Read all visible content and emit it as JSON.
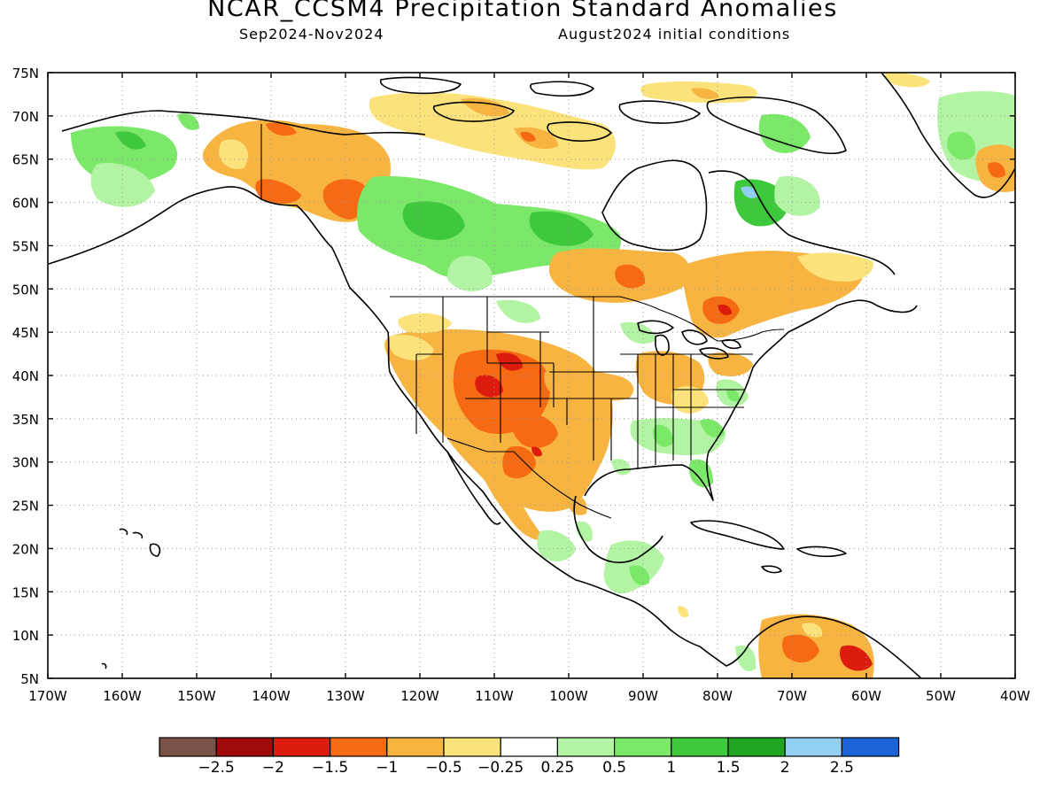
{
  "title": "NCAR_CCSM4 Precipitation Standard Anomalies",
  "subtitle_left": "Sep2024-Nov2024",
  "subtitle_right": "August2024 initial conditions",
  "map": {
    "projection": "cylindrical equidistant",
    "lon_range": [
      -170,
      -40
    ],
    "lat_range": [
      5,
      75
    ],
    "grid": "dotted",
    "lat_labels": [
      "75N",
      "70N",
      "65N",
      "60N",
      "55N",
      "50N",
      "45N",
      "40N",
      "35N",
      "30N",
      "25N",
      "20N",
      "15N",
      "10N",
      "5N"
    ],
    "lon_labels": [
      "170W",
      "160W",
      "150W",
      "140W",
      "130W",
      "120W",
      "110W",
      "100W",
      "90W",
      "80W",
      "70W",
      "60W",
      "50W",
      "40W"
    ]
  },
  "colorbar": {
    "colors": [
      "#7b5247",
      "#a10a0a",
      "#dc1d0e",
      "#f56a12",
      "#f8b441",
      "#fbe27a",
      "#ffffff",
      "#b2f4a3",
      "#7be86a",
      "#3ec83c",
      "#1fa522",
      "#93cef3",
      "#1c63d6"
    ],
    "labels": [
      "-2.5",
      "-2",
      "-1.5",
      "-1",
      "-0.5",
      "-0.25",
      "0.25",
      "0.5",
      "1",
      "1.5",
      "2",
      "2.5"
    ]
  }
}
